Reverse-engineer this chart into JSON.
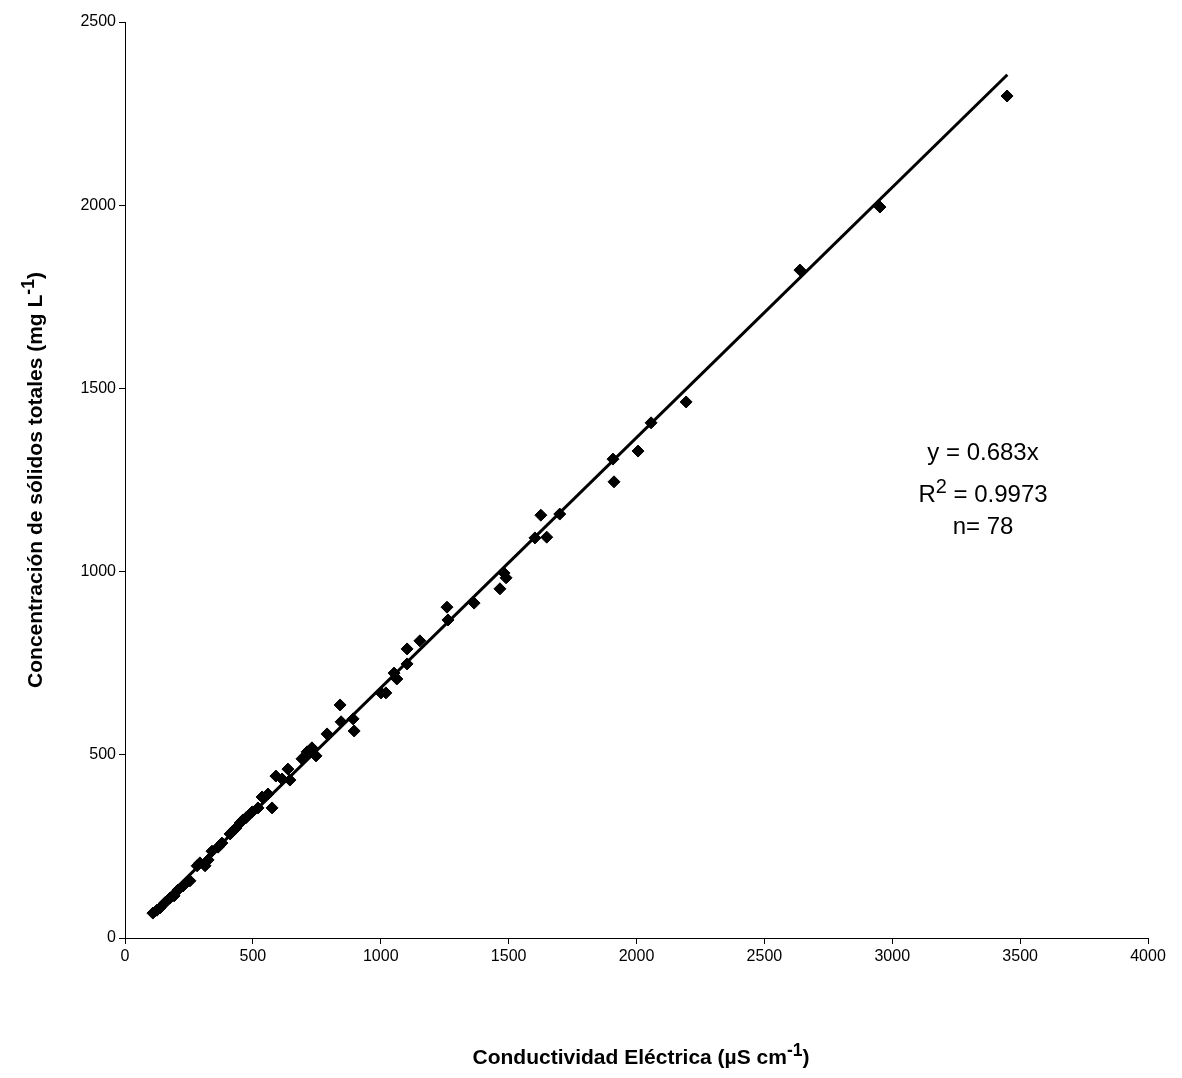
{
  "chart_data": {
    "type": "scatter",
    "xlabel": "Conductividad Eléctrica (µS cm$^{-1}$)",
    "ylabel": "Concentración de sólidos totales (mg L$^{-1}$)",
    "x": [
      109,
      125,
      137,
      156,
      176,
      192,
      207,
      227,
      254,
      282,
      293,
      313,
      325,
      340,
      364,
      379,
      411,
      422,
      434,
      450,
      461,
      473,
      497,
      520,
      536,
      540,
      559,
      575,
      590,
      614,
      637,
      645,
      692,
      712,
      731,
      747,
      790,
      841,
      845,
      892,
      896,
      1001,
      1020,
      1052,
      1063,
      1103,
      1103,
      1153,
      1259,
      1263,
      1365,
      1466,
      1482,
      1490,
      1603,
      1626,
      1649,
      1700,
      1908,
      1912,
      2006,
      2057,
      2194,
      2639,
      2952,
      3449
    ],
    "series": [
      {
        "color": "#000000",
        "marker": "diamond",
        "values": [
          68,
          76,
          82,
          96,
          109,
          115,
          131,
          142,
          156,
          197,
          205,
          197,
          213,
          237,
          248,
          259,
          284,
          292,
          300,
          314,
          322,
          328,
          344,
          355,
          385,
          382,
          393,
          355,
          442,
          434,
          461,
          431,
          489,
          508,
          519,
          497,
          557,
          636,
          590,
          598,
          565,
          669,
          669,
          723,
          707,
          789,
          748,
          811,
          903,
          868,
          914,
          953,
          996,
          983,
          1092,
          1154,
          1094,
          1157,
          1307,
          1245,
          1329,
          1406,
          1463,
          1823,
          1995,
          2298
        ]
      },
      {
        "type": "line",
        "color": "#000000",
        "marker": "none",
        "line_style": "solid",
        "x": [
          100,
          3450
        ],
        "values": [
          68,
          2356
        ]
      }
    ],
    "xlim": [
      0,
      4000
    ],
    "xticks": [
      0,
      500,
      1000,
      1500,
      2000,
      2500,
      3000,
      3500,
      4000
    ],
    "ylim": [
      0,
      2500
    ],
    "yticks": [
      0,
      500,
      1000,
      1500,
      2000,
      2500
    ],
    "grid": false,
    "legend": false,
    "annotations": [
      "y = 0.683x",
      "R$^{2}$ = 0.9973",
      "n= 78"
    ]
  }
}
